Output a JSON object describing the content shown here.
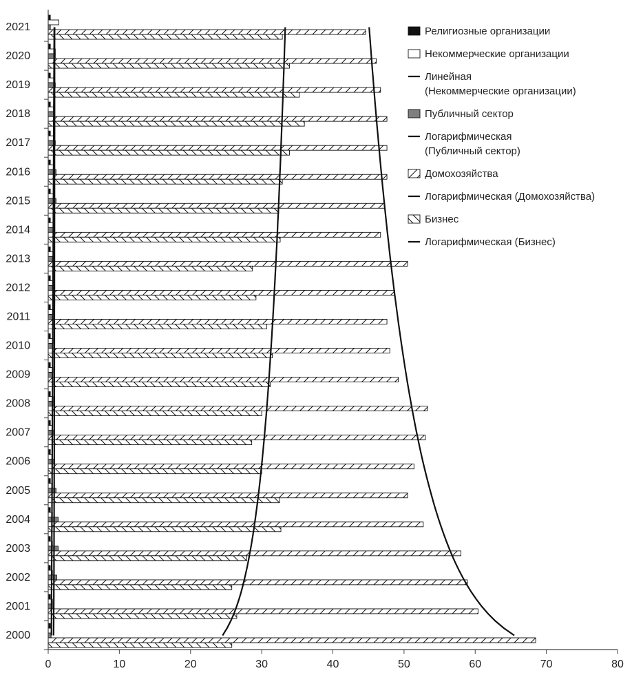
{
  "chart_data": {
    "type": "bar",
    "orientation": "horizontal",
    "categories": [
      "2000",
      "2001",
      "2002",
      "2003",
      "2004",
      "2005",
      "2006",
      "2007",
      "2008",
      "2009",
      "2010",
      "2011",
      "2012",
      "2013",
      "2014",
      "2015",
      "2016",
      "2017",
      "2018",
      "2019",
      "2020",
      "2021"
    ],
    "xlim": [
      0,
      80
    ],
    "xticks": [
      "0",
      "10",
      "20",
      "30",
      "40",
      "50",
      "60",
      "70",
      "80"
    ],
    "series": [
      {
        "name": "Религиозные организации",
        "pattern": "solid-black",
        "values": [
          0.3,
          0.3,
          0.3,
          0.3,
          0.3,
          0.3,
          0.3,
          0.3,
          0.3,
          0.3,
          0.3,
          0.3,
          0.3,
          0.3,
          0.3,
          0.3,
          0.3,
          0.3,
          0.3,
          0.3,
          0.3,
          0.3
        ]
      },
      {
        "name": "Некоммерческие организации",
        "pattern": "white",
        "values": [
          0.5,
          0.6,
          0.6,
          0.6,
          0.6,
          0.6,
          0.6,
          0.6,
          0.7,
          0.7,
          0.7,
          0.7,
          0.7,
          0.7,
          0.7,
          0.8,
          0.8,
          0.8,
          0.8,
          0.9,
          1.0,
          1.5
        ]
      },
      {
        "name": "Публичный сектор",
        "pattern": "gray",
        "values": [
          0.4,
          0.6,
          1.2,
          1.4,
          1.4,
          1.1,
          0.9,
          0.8,
          0.7,
          0.6,
          0.6,
          0.6,
          0.6,
          0.6,
          0.8,
          1.1,
          1.1,
          1.0,
          0.9,
          1.0,
          1.0,
          0.3
        ]
      },
      {
        "name": "Домохозяйства",
        "pattern": "hatch-forward",
        "values": [
          68.5,
          60.4,
          58.9,
          58.0,
          52.7,
          50.5,
          51.4,
          53.0,
          53.3,
          49.2,
          48.0,
          47.6,
          48.7,
          50.5,
          46.7,
          47.3,
          47.6,
          47.6,
          47.6,
          46.7,
          46.1,
          44.6
        ]
      },
      {
        "name": "Бизнес",
        "pattern": "hatch-back",
        "values": [
          25.8,
          26.5,
          25.8,
          27.9,
          32.7,
          32.5,
          30.0,
          28.6,
          30.0,
          31.2,
          31.5,
          30.7,
          29.2,
          28.7,
          32.6,
          32.4,
          32.9,
          33.9,
          36.0,
          35.3,
          33.9,
          32.9
        ]
      }
    ],
    "trendlines": [
      {
        "name": "Линейная (Некоммерческие организации)",
        "kind": "linear"
      },
      {
        "name": "Логарифмическая (Публичный сектор)",
        "kind": "logarithmic"
      },
      {
        "name": "Логарифмическая (Домохозяйства)",
        "kind": "logarithmic"
      },
      {
        "name": "Логарифмическая (Бизнес)",
        "kind": "logarithmic"
      }
    ],
    "legend": {
      "position": "right",
      "entries": [
        {
          "label": "Религиозные организации",
          "symbol": "solid-black"
        },
        {
          "label": "Некоммерческие организации",
          "symbol": "white"
        },
        {
          "label": "Линейная (Некоммерческие организации)",
          "symbol": "line"
        },
        {
          "label": "Публичный сектор",
          "symbol": "gray"
        },
        {
          "label": "Логарифмическая (Публичный сектор)",
          "symbol": "line"
        },
        {
          "label": "Домохозяйства",
          "symbol": "hatch-forward"
        },
        {
          "label": "Логарифмическая (Домохозяйства)",
          "symbol": "line"
        },
        {
          "label": "Бизнес",
          "symbol": "hatch-back"
        },
        {
          "label": "Логарифмическая (Бизнес)",
          "symbol": "line"
        }
      ]
    },
    "grid": false
  }
}
